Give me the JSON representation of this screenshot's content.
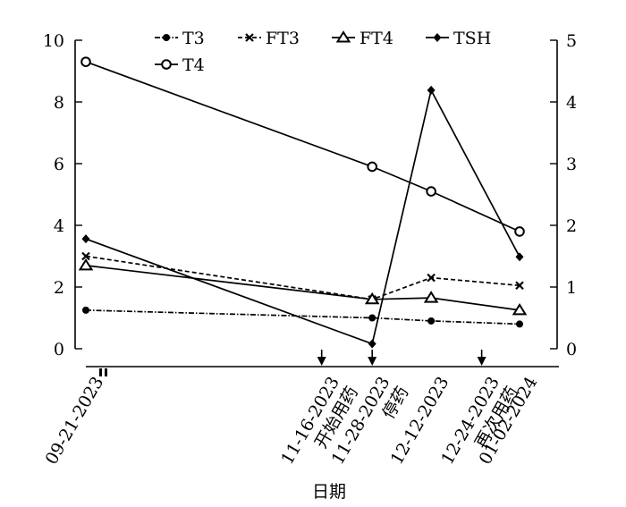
{
  "chart_data": {
    "type": "line",
    "xlabel": "日期",
    "ylabel": "",
    "y2label": "",
    "ylim": [
      0,
      10
    ],
    "y2lim": [
      0,
      5
    ],
    "yticks": [
      "0",
      "2",
      "4",
      "6",
      "8",
      "10"
    ],
    "y2ticks": [
      "0",
      "1",
      "2",
      "3",
      "4",
      "5"
    ],
    "grid": false,
    "legend_position": "top",
    "x_tick_labels": [
      {
        "date": "09-21-2023",
        "note": ""
      },
      {
        "date": "11-16-2023",
        "note": "开始用药"
      },
      {
        "date": "11-28-2023",
        "note": "停药"
      },
      {
        "date": "12-12-2023",
        "note": ""
      },
      {
        "date": "12-24-2023",
        "note": "再次用药"
      },
      {
        "date": "01-02-2024",
        "note": ""
      }
    ],
    "events": [
      {
        "date": "11-16-2023",
        "label": "开始用药"
      },
      {
        "date": "11-28-2023",
        "label": "停药"
      },
      {
        "date": "12-24-2023",
        "label": "再次用药"
      }
    ],
    "x": [
      "09-21-2023",
      "11-28-2023",
      "12-12-2023",
      "01-02-2024"
    ],
    "series": [
      {
        "name": "T3",
        "axis": "left",
        "marker": "filled-circle",
        "line": "dashdot",
        "values": [
          1.25,
          1.0,
          0.9,
          0.8
        ]
      },
      {
        "name": "FT3",
        "axis": "left",
        "marker": "x",
        "line": "dashed",
        "values": [
          3.0,
          1.6,
          2.3,
          2.05
        ]
      },
      {
        "name": "FT4",
        "axis": "left",
        "marker": "triangle",
        "line": "solid",
        "values": [
          2.7,
          1.6,
          1.65,
          1.25
        ]
      },
      {
        "name": "TSH",
        "axis": "right",
        "marker": "diamond",
        "line": "solid",
        "values": [
          1.78,
          0.08,
          4.19,
          1.49
        ]
      },
      {
        "name": "T4",
        "axis": "left",
        "marker": "open-circle",
        "line": "solid",
        "values": [
          9.3,
          5.9,
          5.1,
          3.8
        ]
      }
    ],
    "legend": [
      "T3",
      "FT3",
      "FT4",
      "TSH",
      "T4"
    ]
  }
}
